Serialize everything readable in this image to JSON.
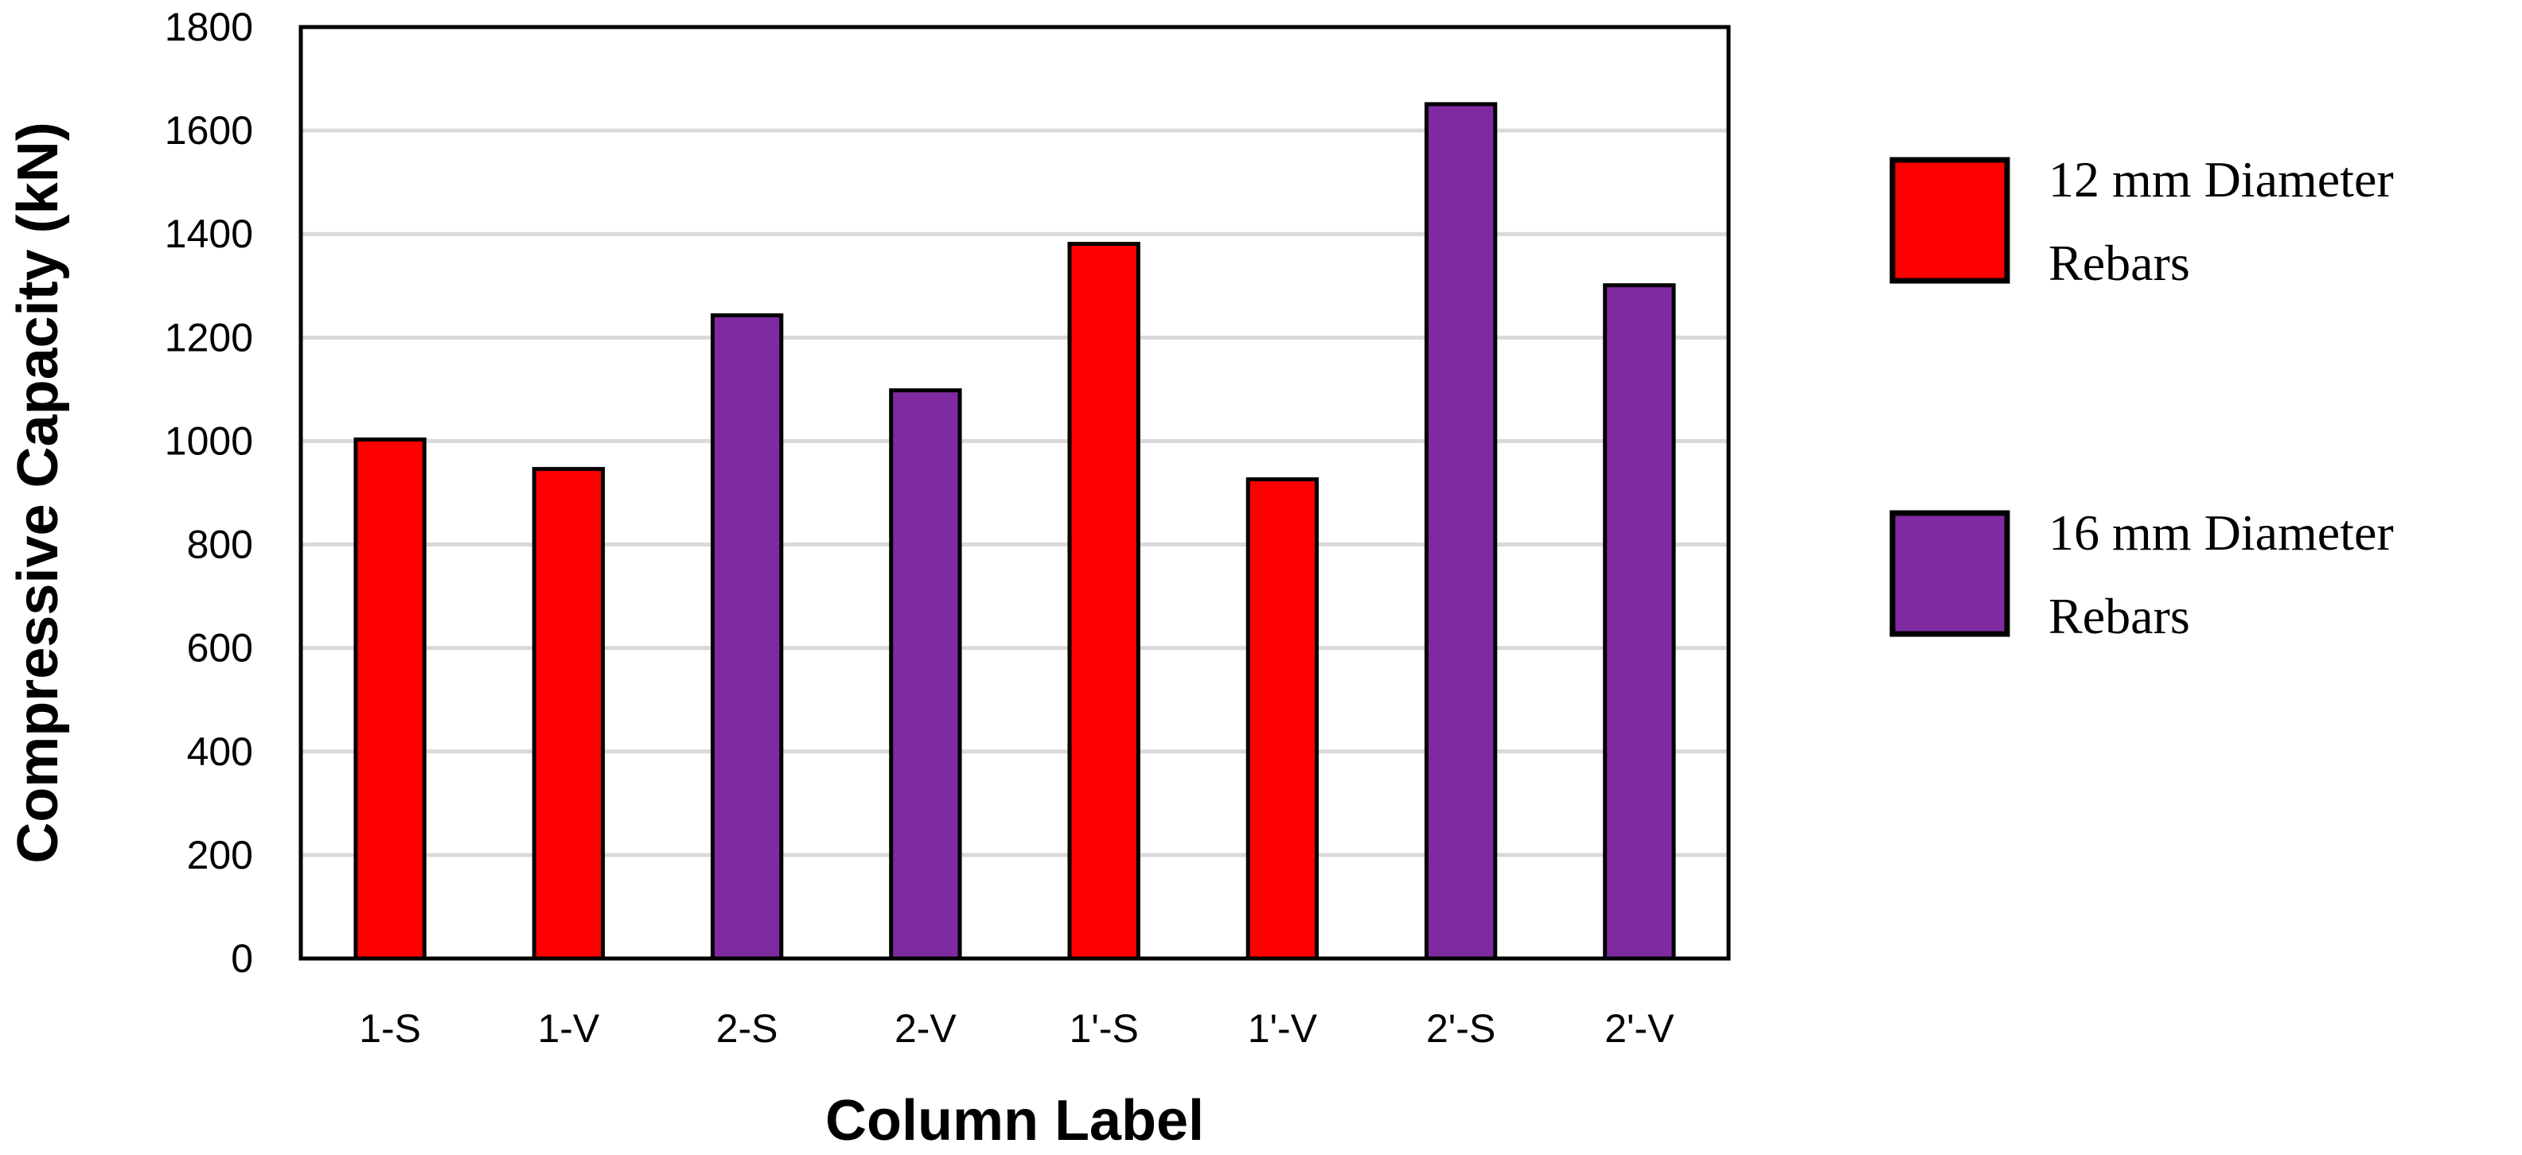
{
  "chart_data": {
    "type": "bar",
    "categories": [
      "1-S",
      "1-V",
      "2-S",
      "2-V",
      "1'-S",
      "1'-V",
      "2'-S",
      "2'-V"
    ],
    "values": [
      1003,
      946,
      1243,
      1098,
      1381,
      926,
      1651,
      1301
    ],
    "bar_series": [
      0,
      0,
      1,
      1,
      0,
      0,
      1,
      1
    ],
    "series": [
      {
        "name_lines": [
          "12 mm Diameter",
          "Rebars"
        ],
        "color": "#ff0000"
      },
      {
        "name_lines": [
          "16 mm Diameter",
          "Rebars"
        ],
        "color": "#7f2aa1"
      }
    ],
    "xlabel": "Column Label",
    "ylabel": "Compressive Capacity (kN)",
    "ylim": [
      0,
      1800
    ],
    "yticks": [
      "0",
      "200",
      "400",
      "600",
      "800",
      "1000",
      "1200",
      "1400",
      "1600",
      "1800"
    ],
    "grid": true,
    "legend_position": "right"
  }
}
